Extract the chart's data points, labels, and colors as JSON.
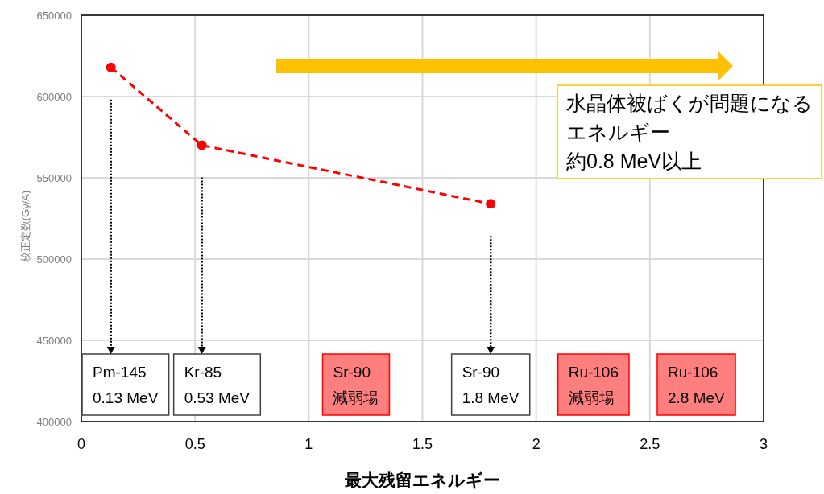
{
  "chart_data": {
    "type": "line",
    "xlabel": "最大残留エネルギー",
    "ylabel": "校正定数(Gy/A)",
    "x": [
      0.13,
      0.53,
      1.8
    ],
    "series": [
      {
        "color": "#ff0000",
        "values": [
          618000,
          570000,
          534000
        ]
      }
    ],
    "xlim": [
      0,
      3
    ],
    "ylim": [
      400000,
      650000
    ],
    "xticks": [
      0,
      0.5,
      1,
      1.5,
      2,
      2.5,
      3
    ],
    "yticks": [
      400000,
      450000,
      500000,
      550000,
      600000,
      650000
    ],
    "grid": true,
    "marker": "circle",
    "line_style": "dashed",
    "annotations": [
      "水晶体被ばくが問題になるエネルギー",
      "約0.8 MeV以上",
      "Pm-145 0.13 MeV",
      "Kr-85 0.53 MeV",
      "Sr-90 減弱場",
      "Sr-90 1.8 MeV",
      "Ru-106 減弱場",
      "Ru-106 2.8 MeV"
    ]
  }
}
